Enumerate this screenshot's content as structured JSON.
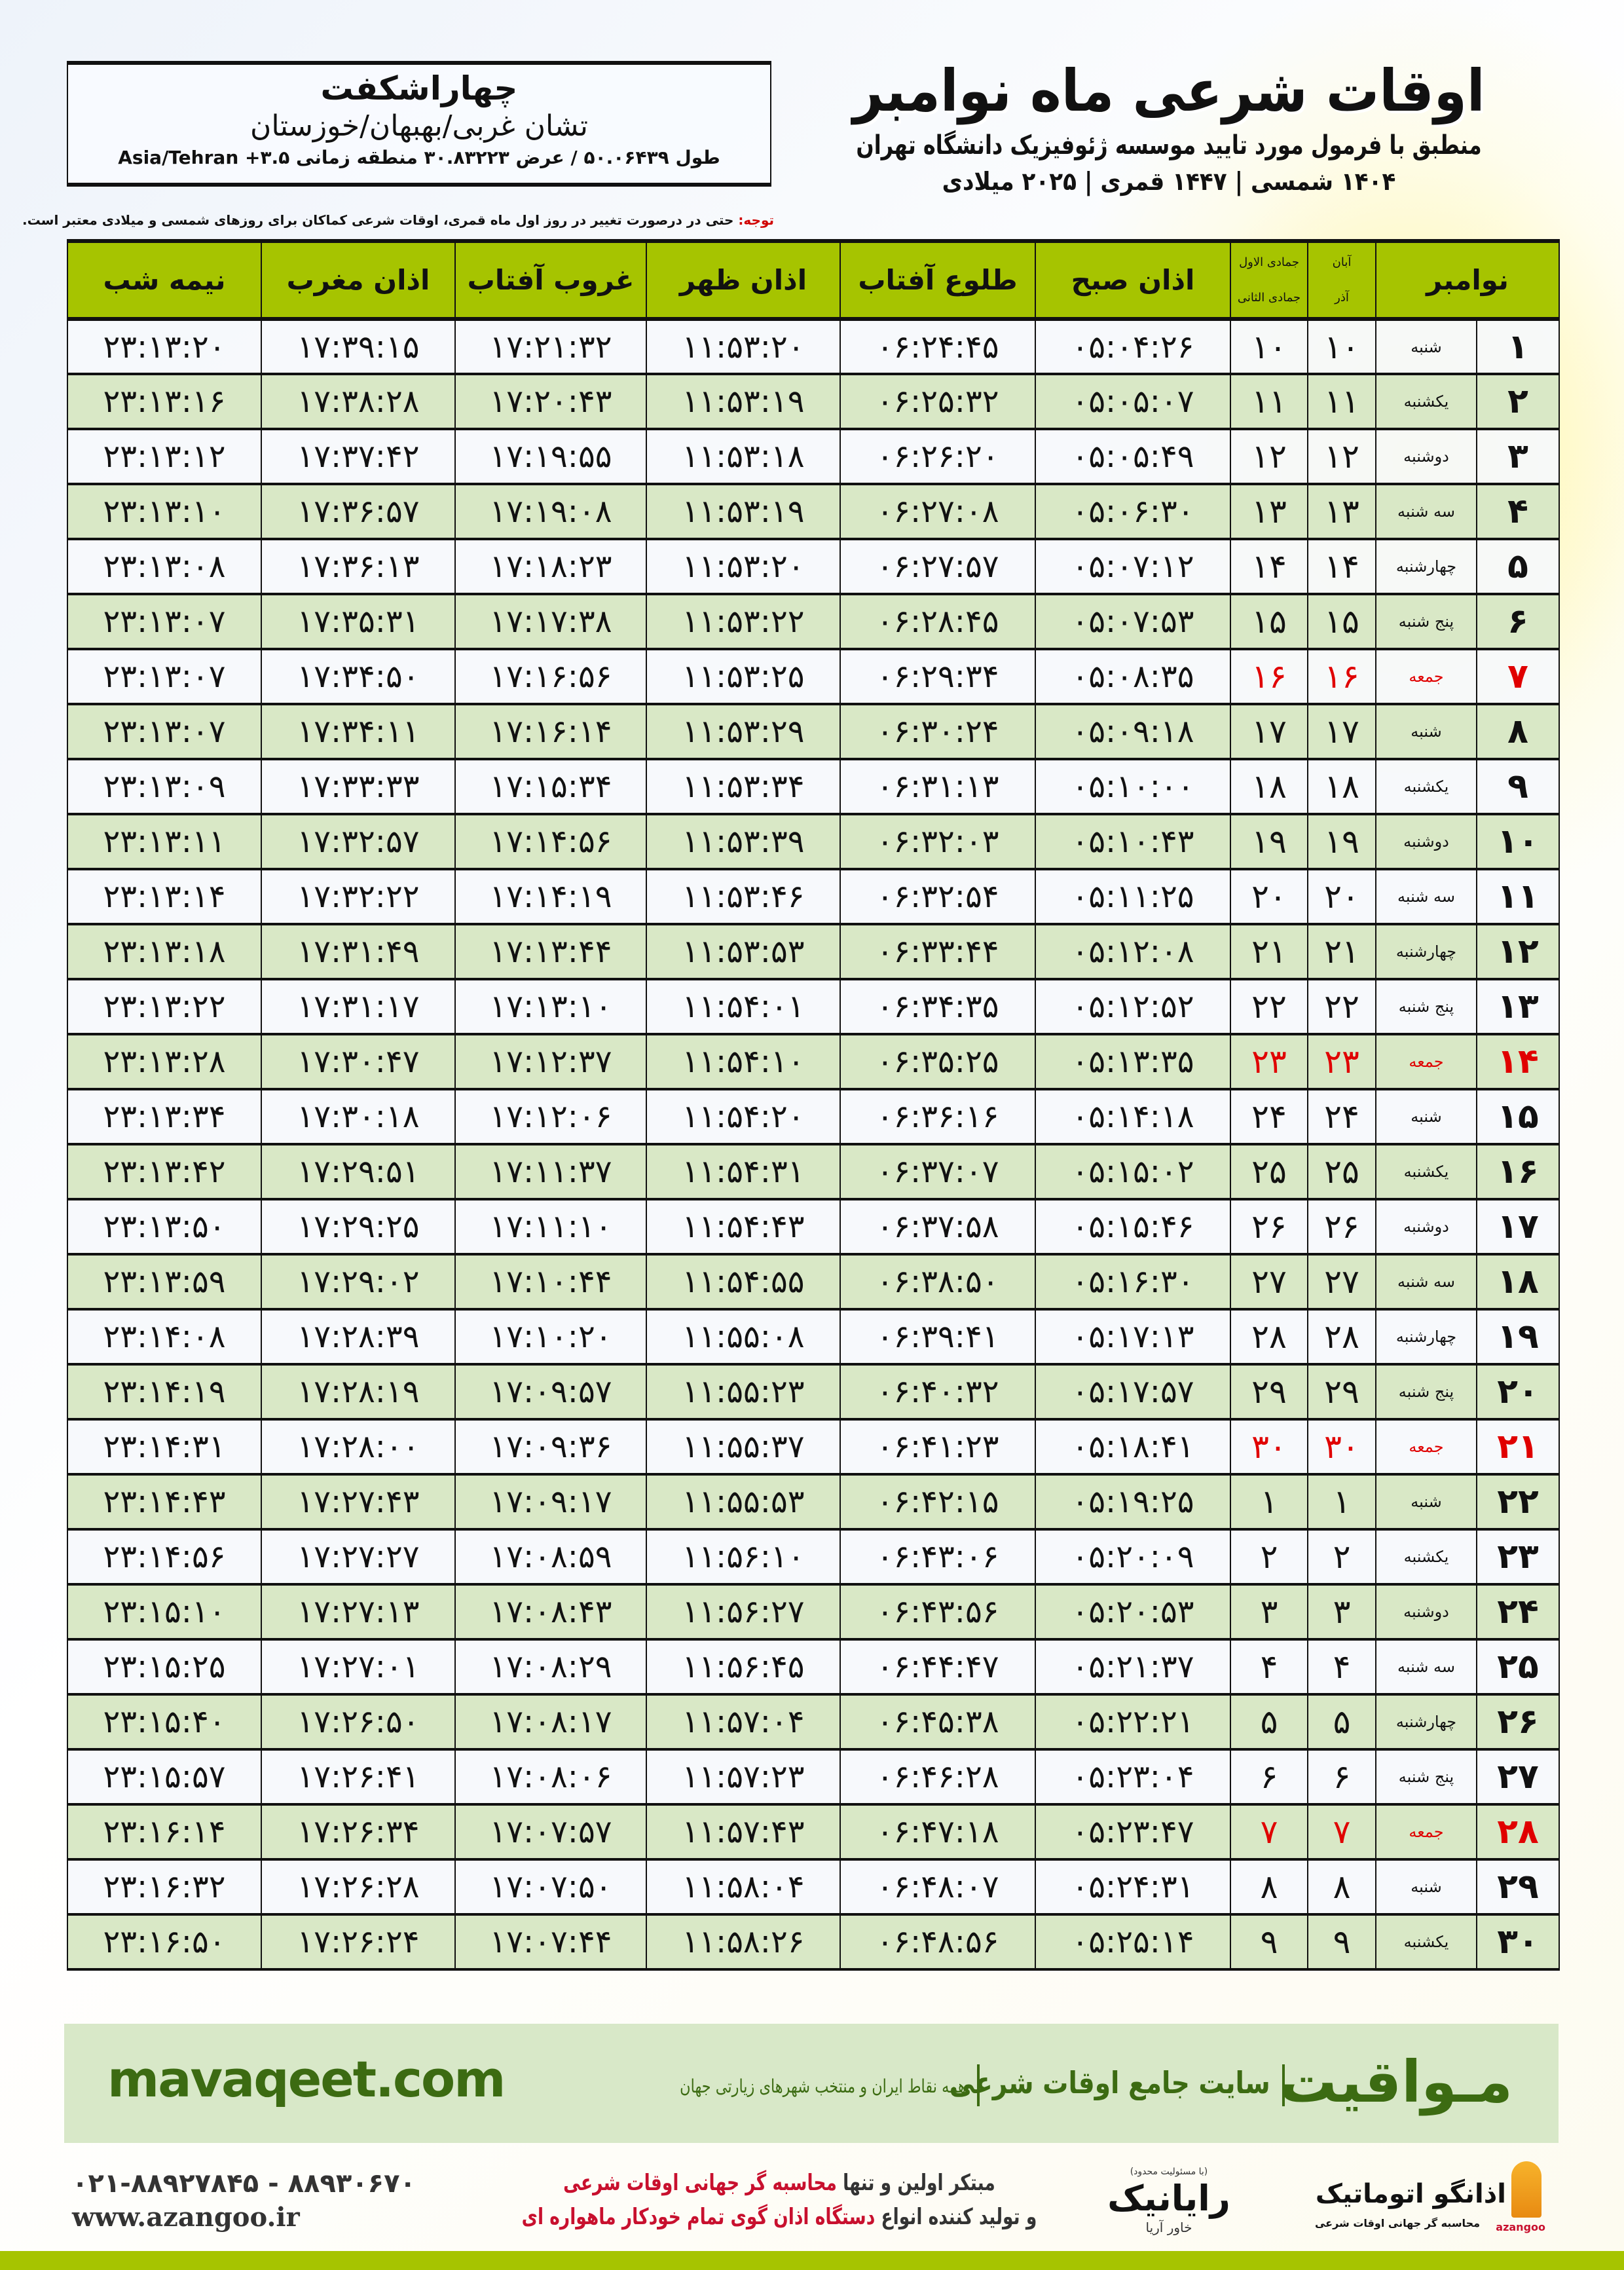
{
  "info": {
    "city": "چهاراشکفت",
    "region": "تشان غربی/بهبهان/خوزستان",
    "coords": "طول ۵۰.۰۶۴۳۹ / عرض ۳۰.۸۳۲۲۳ منطقه زمانی ۳.۵+ Asia/Tehran"
  },
  "title": {
    "main": "اوقات شرعی ماه نوامبر",
    "sub": "منطبق با فرمول مورد تایید موسسه ژئوفیزیک دانشگاه تهران",
    "years": "۱۴۰۴ شمسی | ۱۴۴۷ قمری | ۲۰۲۵ میلادی"
  },
  "note": {
    "label": "توجه:",
    "text": " حتی در درصورت تغییر در روز اول ماه قمری، اوقات شرعی کماکان برای روزهای شمسی و میلادی معتبر است."
  },
  "headers": {
    "month": "نوامبر",
    "shamsi_top": "آبان",
    "shamsi_bottom": "آذر",
    "qamari_top": "جمادی الاول",
    "qamari_bottom": "جمادی الثانی",
    "sobh": "اذان صبح",
    "tolu": "طلوع آفتاب",
    "zohr": "اذان ظهر",
    "ghorub": "غروب آفتاب",
    "maghrib": "اذان مغرب",
    "nimeshab": "نیمه شب"
  },
  "colors": {
    "header_green": "#a6c400",
    "row_green": "#d9e8c6",
    "friday_red": "#e00000",
    "brand_green": "#3c6b12"
  },
  "rows": [
    {
      "day": "۱",
      "name": "شنبه",
      "shamsi": "۱۰",
      "qamari": "۱۰",
      "sobh": "۰۵:۰۴:۲۶",
      "tolu": "۰۶:۲۴:۴۵",
      "zohr": "۱۱:۵۳:۲۰",
      "ghorub": "۱۷:۲۱:۳۲",
      "maghrib": "۱۷:۳۹:۱۵",
      "nimeshab": "۲۳:۱۳:۲۰",
      "friday": false
    },
    {
      "day": "۲",
      "name": "یکشنبه",
      "shamsi": "۱۱",
      "qamari": "۱۱",
      "sobh": "۰۵:۰۵:۰۷",
      "tolu": "۰۶:۲۵:۳۲",
      "zohr": "۱۱:۵۳:۱۹",
      "ghorub": "۱۷:۲۰:۴۳",
      "maghrib": "۱۷:۳۸:۲۸",
      "nimeshab": "۲۳:۱۳:۱۶",
      "friday": false
    },
    {
      "day": "۳",
      "name": "دوشنبه",
      "shamsi": "۱۲",
      "qamari": "۱۲",
      "sobh": "۰۵:۰۵:۴۹",
      "tolu": "۰۶:۲۶:۲۰",
      "zohr": "۱۱:۵۳:۱۸",
      "ghorub": "۱۷:۱۹:۵۵",
      "maghrib": "۱۷:۳۷:۴۲",
      "nimeshab": "۲۳:۱۳:۱۲",
      "friday": false
    },
    {
      "day": "۴",
      "name": "سه شنبه",
      "shamsi": "۱۳",
      "qamari": "۱۳",
      "sobh": "۰۵:۰۶:۳۰",
      "tolu": "۰۶:۲۷:۰۸",
      "zohr": "۱۱:۵۳:۱۹",
      "ghorub": "۱۷:۱۹:۰۸",
      "maghrib": "۱۷:۳۶:۵۷",
      "nimeshab": "۲۳:۱۳:۱۰",
      "friday": false
    },
    {
      "day": "۵",
      "name": "چهارشنبه",
      "shamsi": "۱۴",
      "qamari": "۱۴",
      "sobh": "۰۵:۰۷:۱۲",
      "tolu": "۰۶:۲۷:۵۷",
      "zohr": "۱۱:۵۳:۲۰",
      "ghorub": "۱۷:۱۸:۲۳",
      "maghrib": "۱۷:۳۶:۱۳",
      "nimeshab": "۲۳:۱۳:۰۸",
      "friday": false
    },
    {
      "day": "۶",
      "name": "پنج شنبه",
      "shamsi": "۱۵",
      "qamari": "۱۵",
      "sobh": "۰۵:۰۷:۵۳",
      "tolu": "۰۶:۲۸:۴۵",
      "zohr": "۱۱:۵۳:۲۲",
      "ghorub": "۱۷:۱۷:۳۸",
      "maghrib": "۱۷:۳۵:۳۱",
      "nimeshab": "۲۳:۱۳:۰۷",
      "friday": false
    },
    {
      "day": "۷",
      "name": "جمعه",
      "shamsi": "۱۶",
      "qamari": "۱۶",
      "sobh": "۰۵:۰۸:۳۵",
      "tolu": "۰۶:۲۹:۳۴",
      "zohr": "۱۱:۵۳:۲۵",
      "ghorub": "۱۷:۱۶:۵۶",
      "maghrib": "۱۷:۳۴:۵۰",
      "nimeshab": "۲۳:۱۳:۰۷",
      "friday": true
    },
    {
      "day": "۸",
      "name": "شنبه",
      "shamsi": "۱۷",
      "qamari": "۱۷",
      "sobh": "۰۵:۰۹:۱۸",
      "tolu": "۰۶:۳۰:۲۴",
      "zohr": "۱۱:۵۳:۲۹",
      "ghorub": "۱۷:۱۶:۱۴",
      "maghrib": "۱۷:۳۴:۱۱",
      "nimeshab": "۲۳:۱۳:۰۷",
      "friday": false
    },
    {
      "day": "۹",
      "name": "یکشنبه",
      "shamsi": "۱۸",
      "qamari": "۱۸",
      "sobh": "۰۵:۱۰:۰۰",
      "tolu": "۰۶:۳۱:۱۳",
      "zohr": "۱۱:۵۳:۳۴",
      "ghorub": "۱۷:۱۵:۳۴",
      "maghrib": "۱۷:۳۳:۳۳",
      "nimeshab": "۲۳:۱۳:۰۹",
      "friday": false
    },
    {
      "day": "۱۰",
      "name": "دوشنبه",
      "shamsi": "۱۹",
      "qamari": "۱۹",
      "sobh": "۰۵:۱۰:۴۳",
      "tolu": "۰۶:۳۲:۰۳",
      "zohr": "۱۱:۵۳:۳۹",
      "ghorub": "۱۷:۱۴:۵۶",
      "maghrib": "۱۷:۳۲:۵۷",
      "nimeshab": "۲۳:۱۳:۱۱",
      "friday": false
    },
    {
      "day": "۱۱",
      "name": "سه شنبه",
      "shamsi": "۲۰",
      "qamari": "۲۰",
      "sobh": "۰۵:۱۱:۲۵",
      "tolu": "۰۶:۳۲:۵۴",
      "zohr": "۱۱:۵۳:۴۶",
      "ghorub": "۱۷:۱۴:۱۹",
      "maghrib": "۱۷:۳۲:۲۲",
      "nimeshab": "۲۳:۱۳:۱۴",
      "friday": false
    },
    {
      "day": "۱۲",
      "name": "چهارشنبه",
      "shamsi": "۲۱",
      "qamari": "۲۱",
      "sobh": "۰۵:۱۲:۰۸",
      "tolu": "۰۶:۳۳:۴۴",
      "zohr": "۱۱:۵۳:۵۳",
      "ghorub": "۱۷:۱۳:۴۴",
      "maghrib": "۱۷:۳۱:۴۹",
      "nimeshab": "۲۳:۱۳:۱۸",
      "friday": false
    },
    {
      "day": "۱۳",
      "name": "پنج شنبه",
      "shamsi": "۲۲",
      "qamari": "۲۲",
      "sobh": "۰۵:۱۲:۵۲",
      "tolu": "۰۶:۳۴:۳۵",
      "zohr": "۱۱:۵۴:۰۱",
      "ghorub": "۱۷:۱۳:۱۰",
      "maghrib": "۱۷:۳۱:۱۷",
      "nimeshab": "۲۳:۱۳:۲۲",
      "friday": false
    },
    {
      "day": "۱۴",
      "name": "جمعه",
      "shamsi": "۲۳",
      "qamari": "۲۳",
      "sobh": "۰۵:۱۳:۳۵",
      "tolu": "۰۶:۳۵:۲۵",
      "zohr": "۱۱:۵۴:۱۰",
      "ghorub": "۱۷:۱۲:۳۷",
      "maghrib": "۱۷:۳۰:۴۷",
      "nimeshab": "۲۳:۱۳:۲۸",
      "friday": true
    },
    {
      "day": "۱۵",
      "name": "شنبه",
      "shamsi": "۲۴",
      "qamari": "۲۴",
      "sobh": "۰۵:۱۴:۱۸",
      "tolu": "۰۶:۳۶:۱۶",
      "zohr": "۱۱:۵۴:۲۰",
      "ghorub": "۱۷:۱۲:۰۶",
      "maghrib": "۱۷:۳۰:۱۸",
      "nimeshab": "۲۳:۱۳:۳۴",
      "friday": false
    },
    {
      "day": "۱۶",
      "name": "یکشنبه",
      "shamsi": "۲۵",
      "qamari": "۲۵",
      "sobh": "۰۵:۱۵:۰۲",
      "tolu": "۰۶:۳۷:۰۷",
      "zohr": "۱۱:۵۴:۳۱",
      "ghorub": "۱۷:۱۱:۳۷",
      "maghrib": "۱۷:۲۹:۵۱",
      "nimeshab": "۲۳:۱۳:۴۲",
      "friday": false
    },
    {
      "day": "۱۷",
      "name": "دوشنبه",
      "shamsi": "۲۶",
      "qamari": "۲۶",
      "sobh": "۰۵:۱۵:۴۶",
      "tolu": "۰۶:۳۷:۵۸",
      "zohr": "۱۱:۵۴:۴۳",
      "ghorub": "۱۷:۱۱:۱۰",
      "maghrib": "۱۷:۲۹:۲۵",
      "nimeshab": "۲۳:۱۳:۵۰",
      "friday": false
    },
    {
      "day": "۱۸",
      "name": "سه شنبه",
      "shamsi": "۲۷",
      "qamari": "۲۷",
      "sobh": "۰۵:۱۶:۳۰",
      "tolu": "۰۶:۳۸:۵۰",
      "zohr": "۱۱:۵۴:۵۵",
      "ghorub": "۱۷:۱۰:۴۴",
      "maghrib": "۱۷:۲۹:۰۲",
      "nimeshab": "۲۳:۱۳:۵۹",
      "friday": false
    },
    {
      "day": "۱۹",
      "name": "چهارشنبه",
      "shamsi": "۲۸",
      "qamari": "۲۸",
      "sobh": "۰۵:۱۷:۱۳",
      "tolu": "۰۶:۳۹:۴۱",
      "zohr": "۱۱:۵۵:۰۸",
      "ghorub": "۱۷:۱۰:۲۰",
      "maghrib": "۱۷:۲۸:۳۹",
      "nimeshab": "۲۳:۱۴:۰۸",
      "friday": false
    },
    {
      "day": "۲۰",
      "name": "پنج شنبه",
      "shamsi": "۲۹",
      "qamari": "۲۹",
      "sobh": "۰۵:۱۷:۵۷",
      "tolu": "۰۶:۴۰:۳۲",
      "zohr": "۱۱:۵۵:۲۳",
      "ghorub": "۱۷:۰۹:۵۷",
      "maghrib": "۱۷:۲۸:۱۹",
      "nimeshab": "۲۳:۱۴:۱۹",
      "friday": false
    },
    {
      "day": "۲۱",
      "name": "جمعه",
      "shamsi": "۳۰",
      "qamari": "۳۰",
      "sobh": "۰۵:۱۸:۴۱",
      "tolu": "۰۶:۴۱:۲۳",
      "zohr": "۱۱:۵۵:۳۷",
      "ghorub": "۱۷:۰۹:۳۶",
      "maghrib": "۱۷:۲۸:۰۰",
      "nimeshab": "۲۳:۱۴:۳۱",
      "friday": true
    },
    {
      "day": "۲۲",
      "name": "شنبه",
      "shamsi": "۱",
      "qamari": "۱",
      "sobh": "۰۵:۱۹:۲۵",
      "tolu": "۰۶:۴۲:۱۵",
      "zohr": "۱۱:۵۵:۵۳",
      "ghorub": "۱۷:۰۹:۱۷",
      "maghrib": "۱۷:۲۷:۴۳",
      "nimeshab": "۲۳:۱۴:۴۳",
      "friday": false
    },
    {
      "day": "۲۳",
      "name": "یکشنبه",
      "shamsi": "۲",
      "qamari": "۲",
      "sobh": "۰۵:۲۰:۰۹",
      "tolu": "۰۶:۴۳:۰۶",
      "zohr": "۱۱:۵۶:۱۰",
      "ghorub": "۱۷:۰۸:۵۹",
      "maghrib": "۱۷:۲۷:۲۷",
      "nimeshab": "۲۳:۱۴:۵۶",
      "friday": false
    },
    {
      "day": "۲۴",
      "name": "دوشنبه",
      "shamsi": "۳",
      "qamari": "۳",
      "sobh": "۰۵:۲۰:۵۳",
      "tolu": "۰۶:۴۳:۵۶",
      "zohr": "۱۱:۵۶:۲۷",
      "ghorub": "۱۷:۰۸:۴۳",
      "maghrib": "۱۷:۲۷:۱۳",
      "nimeshab": "۲۳:۱۵:۱۰",
      "friday": false
    },
    {
      "day": "۲۵",
      "name": "سه شنبه",
      "shamsi": "۴",
      "qamari": "۴",
      "sobh": "۰۵:۲۱:۳۷",
      "tolu": "۰۶:۴۴:۴۷",
      "zohr": "۱۱:۵۶:۴۵",
      "ghorub": "۱۷:۰۸:۲۹",
      "maghrib": "۱۷:۲۷:۰۱",
      "nimeshab": "۲۳:۱۵:۲۵",
      "friday": false
    },
    {
      "day": "۲۶",
      "name": "چهارشنبه",
      "shamsi": "۵",
      "qamari": "۵",
      "sobh": "۰۵:۲۲:۲۱",
      "tolu": "۰۶:۴۵:۳۸",
      "zohr": "۱۱:۵۷:۰۴",
      "ghorub": "۱۷:۰۸:۱۷",
      "maghrib": "۱۷:۲۶:۵۰",
      "nimeshab": "۲۳:۱۵:۴۰",
      "friday": false
    },
    {
      "day": "۲۷",
      "name": "پنج شنبه",
      "shamsi": "۶",
      "qamari": "۶",
      "sobh": "۰۵:۲۳:۰۴",
      "tolu": "۰۶:۴۶:۲۸",
      "zohr": "۱۱:۵۷:۲۳",
      "ghorub": "۱۷:۰۸:۰۶",
      "maghrib": "۱۷:۲۶:۴۱",
      "nimeshab": "۲۳:۱۵:۵۷",
      "friday": false
    },
    {
      "day": "۲۸",
      "name": "جمعه",
      "shamsi": "۷",
      "qamari": "۷",
      "sobh": "۰۵:۲۳:۴۷",
      "tolu": "۰۶:۴۷:۱۸",
      "zohr": "۱۱:۵۷:۴۳",
      "ghorub": "۱۷:۰۷:۵۷",
      "maghrib": "۱۷:۲۶:۳۴",
      "nimeshab": "۲۳:۱۶:۱۴",
      "friday": true
    },
    {
      "day": "۲۹",
      "name": "شنبه",
      "shamsi": "۸",
      "qamari": "۸",
      "sobh": "۰۵:۲۴:۳۱",
      "tolu": "۰۶:۴۸:۰۷",
      "zohr": "۱۱:۵۸:۰۴",
      "ghorub": "۱۷:۰۷:۵۰",
      "maghrib": "۱۷:۲۶:۲۸",
      "nimeshab": "۲۳:۱۶:۳۲",
      "friday": false
    },
    {
      "day": "۳۰",
      "name": "یکشنبه",
      "shamsi": "۹",
      "qamari": "۹",
      "sobh": "۰۵:۲۵:۱۴",
      "tolu": "۰۶:۴۸:۵۶",
      "zohr": "۱۱:۵۸:۲۶",
      "ghorub": "۱۷:۰۷:۴۴",
      "maghrib": "۱۷:۲۶:۲۴",
      "nimeshab": "۲۳:۱۶:۵۰",
      "friday": false
    }
  ],
  "banner": {
    "site": "mavaqeet.com",
    "brand": "مـواقیت",
    "tagline": "سایت جامع اوقات شرعی",
    "tagline2": "همه نقاط ایران و منتخب شهرهای زیارتی جهان"
  },
  "footer": {
    "phone": "۰۲۱-۸۸۹۲۷۸۴۵ - ۸۸۹۳۰۶۷۰",
    "website": "www.azangoo.ir",
    "slogan1_a": "مبتکر اولین و تنها ",
    "slogan1_b": "محاسبه گر جهانی اوقات شرعی",
    "slogan2_a": "و تولید کننده انواع ",
    "slogan2_b": "دستگاه اذان گوی تمام خودکار ماهواره ای",
    "raya_small": "(با مسئولیت محدود)",
    "raya_name": "رایانیک",
    "raya_sub": "خاور آریا",
    "azangoo_name": "اذانگو اتوماتیک",
    "azangoo_sub": "محاسبه گر جهانی اوقات شرعی",
    "azangoo_latin": "azangoo"
  }
}
